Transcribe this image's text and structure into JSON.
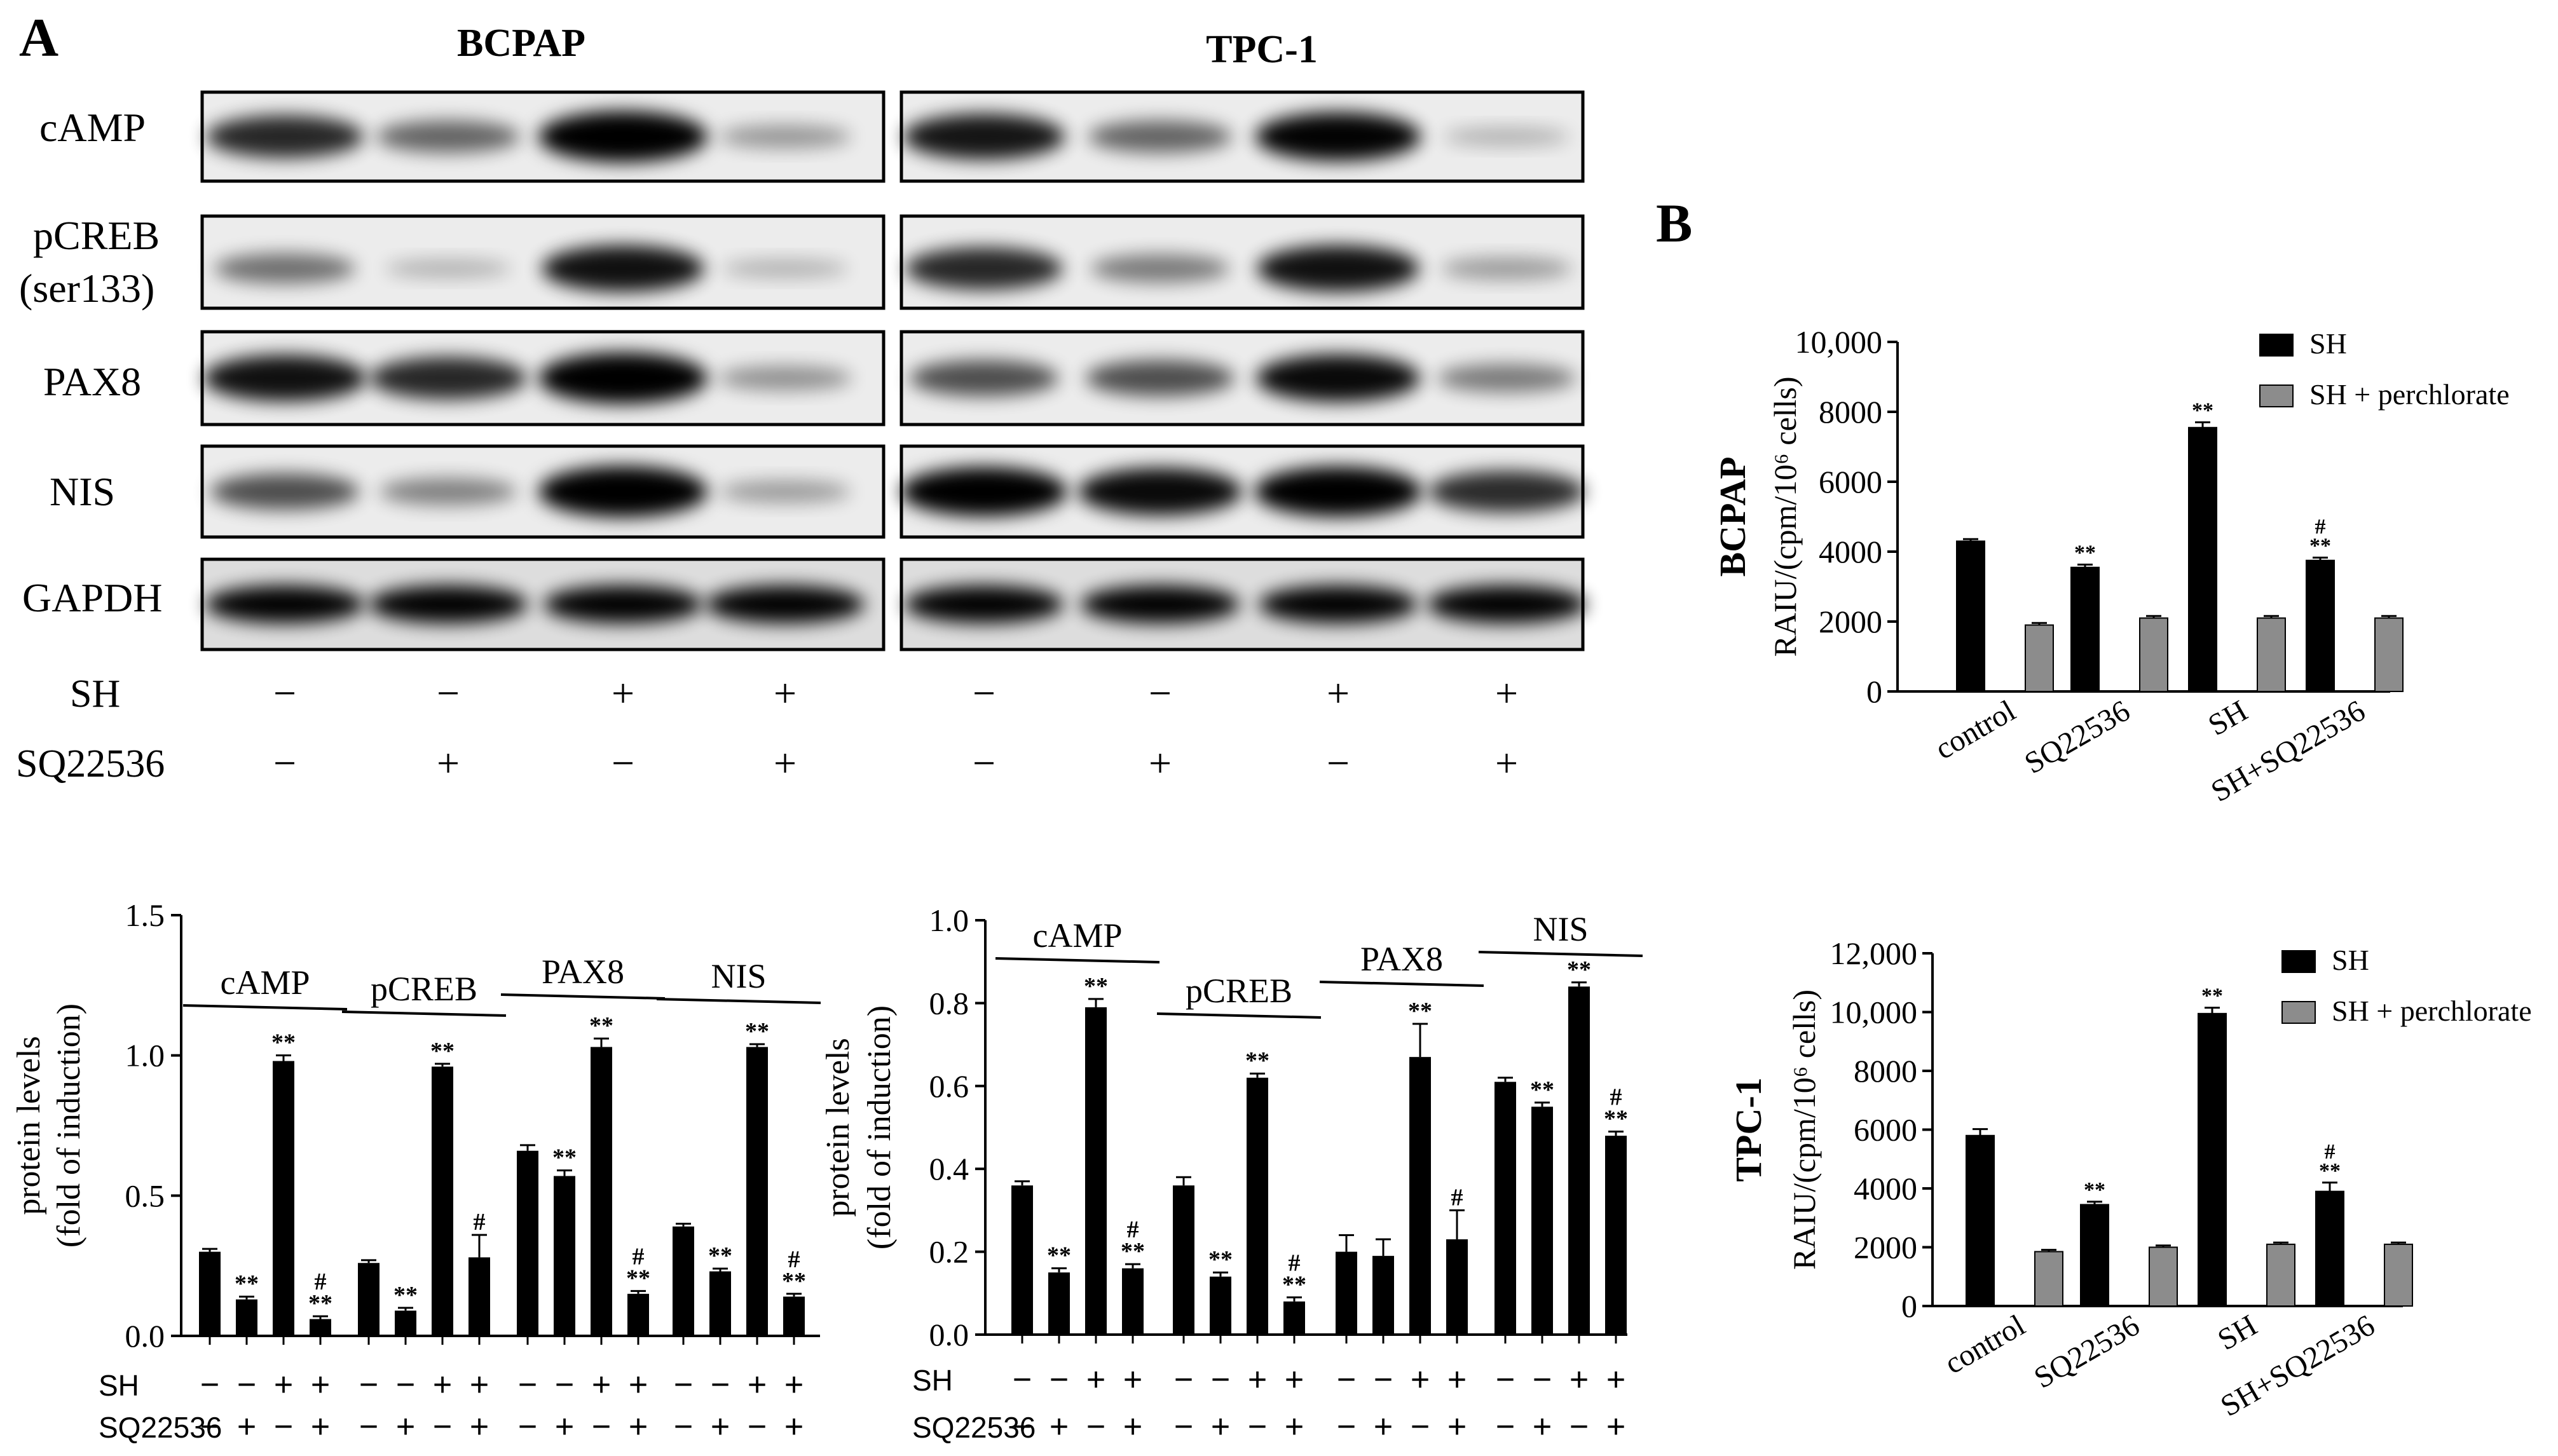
{
  "panel_a": {
    "label": "A",
    "cell_lines": [
      "BCPAP",
      "TPC-1"
    ],
    "proteins": [
      "cAMP",
      "pCREB",
      "(ser133)",
      "PAX8",
      "NIS",
      "GAPDH"
    ],
    "treatments": {
      "rows": [
        "SH",
        "SQ22536"
      ],
      "SH": [
        "−",
        "−",
        "+",
        "+"
      ],
      "SQ22536": [
        "−",
        "+",
        "−",
        "+"
      ]
    },
    "band_intensity": {
      "BCPAP": {
        "cAMP": [
          0.72,
          0.45,
          0.95,
          0.22
        ],
        "pCREB": [
          0.4,
          0.1,
          0.82,
          0.1
        ],
        "PAX8": [
          0.82,
          0.72,
          0.95,
          0.25
        ],
        "NIS": [
          0.55,
          0.32,
          0.95,
          0.2
        ],
        "GAPDH": [
          0.88,
          0.88,
          0.88,
          0.88
        ]
      },
      "TPC-1": {
        "cAMP": [
          0.8,
          0.45,
          0.88,
          0.1
        ],
        "pCREB": [
          0.72,
          0.35,
          0.82,
          0.2
        ],
        "PAX8": [
          0.55,
          0.55,
          0.85,
          0.35
        ],
        "NIS": [
          0.9,
          0.85,
          0.92,
          0.7
        ],
        "GAPDH": [
          0.88,
          0.88,
          0.88,
          0.88
        ]
      }
    }
  },
  "panel_b": {
    "label": "B"
  },
  "chart_data": [
    {
      "type": "bar",
      "panel": "A",
      "cell_line": "BCPAP",
      "ylabel": "protein levels (fold of induction)",
      "ylabel_lines": [
        "protein levels",
        "(fold of induction)"
      ],
      "ylim": [
        0,
        1.5
      ],
      "yticks": [
        "0.0",
        "0.5",
        "1.0",
        "1.5"
      ],
      "group_labels": [
        "cAMP",
        "pCREB",
        "PAX8",
        "NIS"
      ],
      "treatment_rows": [
        "SH",
        "SQ22536"
      ],
      "SH": [
        "−",
        "−",
        "+",
        "+"
      ],
      "SQ22536": [
        "−",
        "+",
        "−",
        "+"
      ],
      "values": [
        [
          0.3,
          0.13,
          0.98,
          0.06
        ],
        [
          0.26,
          0.09,
          0.96,
          0.28
        ],
        [
          0.66,
          0.57,
          1.03,
          0.15
        ],
        [
          0.39,
          0.23,
          1.03,
          0.14
        ]
      ],
      "errors": [
        [
          0.01,
          0.01,
          0.02,
          0.01
        ],
        [
          0.01,
          0.01,
          0.01,
          0.08
        ],
        [
          0.02,
          0.02,
          0.03,
          0.01
        ],
        [
          0.01,
          0.01,
          0.01,
          0.01
        ]
      ],
      "annotations": [
        [
          "",
          "**",
          "**",
          "#\n**"
        ],
        [
          "",
          "**",
          "**",
          "#"
        ],
        [
          "",
          "**",
          "**",
          "#\n**"
        ],
        [
          "",
          "**",
          "**",
          "#\n**"
        ]
      ]
    },
    {
      "type": "bar",
      "panel": "A",
      "cell_line": "TPC-1",
      "ylabel": "protein levels (fold of induction)",
      "ylabel_lines": [
        "protein levels",
        "(fold of induction)"
      ],
      "ylim": [
        0,
        1.0
      ],
      "yticks": [
        "0.0",
        "0.2",
        "0.4",
        "0.6",
        "0.8",
        "1.0"
      ],
      "group_labels": [
        "cAMP",
        "pCREB",
        "PAX8",
        "NIS"
      ],
      "treatment_rows": [
        "SH",
        "SQ22536"
      ],
      "SH": [
        "−",
        "−",
        "+",
        "+"
      ],
      "SQ22536": [
        "−",
        "+",
        "−",
        "+"
      ],
      "values": [
        [
          0.36,
          0.15,
          0.79,
          0.16
        ],
        [
          0.36,
          0.14,
          0.62,
          0.08
        ],
        [
          0.2,
          0.19,
          0.67,
          0.23
        ],
        [
          0.61,
          0.55,
          0.84,
          0.48
        ]
      ],
      "errors": [
        [
          0.01,
          0.01,
          0.02,
          0.01
        ],
        [
          0.02,
          0.01,
          0.01,
          0.01
        ],
        [
          0.04,
          0.04,
          0.08,
          0.07
        ],
        [
          0.01,
          0.01,
          0.01,
          0.01
        ]
      ],
      "annotations": [
        [
          "",
          "**",
          "**",
          "#\n**"
        ],
        [
          "",
          "**",
          "**",
          "#\n**"
        ],
        [
          "",
          "",
          "**",
          "#"
        ],
        [
          "",
          "**",
          "**",
          "#\n**"
        ]
      ]
    },
    {
      "type": "bar",
      "panel": "B",
      "row_label": "BCPAP",
      "ylabel": "RAIU/(cpm/10⁶ cells)",
      "ylim": [
        0,
        10000
      ],
      "yticks": [
        "0",
        "2000",
        "4000",
        "6000",
        "8000",
        "10,000"
      ],
      "categories": [
        "control",
        "SQ22536",
        "SH",
        "SH+SQ22536"
      ],
      "series": [
        {
          "name": "SH",
          "values": [
            4300,
            3550,
            7550,
            3750
          ],
          "errors": [
            60,
            80,
            150,
            80
          ],
          "color": "#000000"
        },
        {
          "name": "SH + perchlorate",
          "values": [
            1900,
            2100,
            2100,
            2100
          ],
          "errors": [
            60,
            60,
            60,
            60
          ],
          "color": "#8c8c8c"
        }
      ],
      "annotations": [
        "",
        "**",
        "**",
        "#\n**"
      ]
    },
    {
      "type": "bar",
      "panel": "B",
      "row_label": "TPC-1",
      "ylabel": "RAIU/(cpm/10⁶ cells)",
      "ylim": [
        0,
        12000
      ],
      "yticks": [
        "0",
        "2000",
        "4000",
        "6000",
        "8000",
        "10,000",
        "12,000"
      ],
      "categories": [
        "control",
        "SQ22536",
        "SH",
        "SH+SQ22536"
      ],
      "series": [
        {
          "name": "SH",
          "values": [
            5800,
            3450,
            9950,
            3900
          ],
          "errors": [
            220,
            100,
            200,
            300
          ],
          "color": "#000000"
        },
        {
          "name": "SH + perchlorate",
          "values": [
            1850,
            2000,
            2100,
            2100
          ],
          "errors": [
            60,
            60,
            60,
            60
          ],
          "color": "#8c8c8c"
        }
      ],
      "annotations": [
        "",
        "**",
        "**",
        "#\n**"
      ]
    }
  ]
}
